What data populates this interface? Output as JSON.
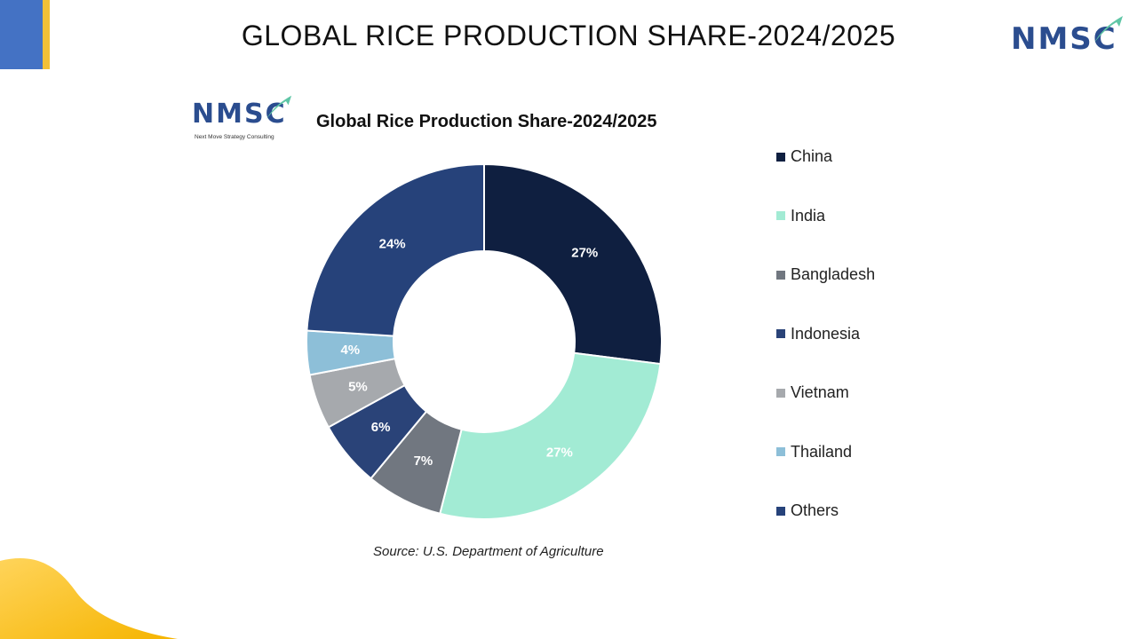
{
  "slide": {
    "title": "GLOBAL RICE PRODUCTION SHARE-2024/2025",
    "logo_text": "NMSC",
    "logo_tagline": "Next Move Strategy Consulting",
    "source": "Source: U.S. Department of Agriculture"
  },
  "colors": {
    "accent_blue": "#4472c4",
    "accent_yellow": "#f2c037",
    "logo_navy": "#2b4d8f",
    "logo_teal": "#5fc6a6"
  },
  "chart_data": {
    "type": "pie",
    "style": "donut",
    "title": "Global Rice Production Share-2024/2025",
    "legend_position": "right",
    "slices": [
      {
        "label": "China",
        "value": 27,
        "display": "27%",
        "color": "#0f1f40"
      },
      {
        "label": "India",
        "value": 27,
        "display": "27%",
        "color": "#a2ebd4"
      },
      {
        "label": "Bangladesh",
        "value": 7,
        "display": "7%",
        "color": "#717780"
      },
      {
        "label": "Indonesia",
        "value": 6,
        "display": "6%",
        "color": "#2a4378"
      },
      {
        "label": "Vietnam",
        "value": 5,
        "display": "5%",
        "color": "#a6a9ad"
      },
      {
        "label": "Thailand",
        "value": 4,
        "display": "4%",
        "color": "#8dbfd8"
      },
      {
        "label": "Others",
        "value": 24,
        "display": "24%",
        "color": "#26427a"
      }
    ]
  }
}
